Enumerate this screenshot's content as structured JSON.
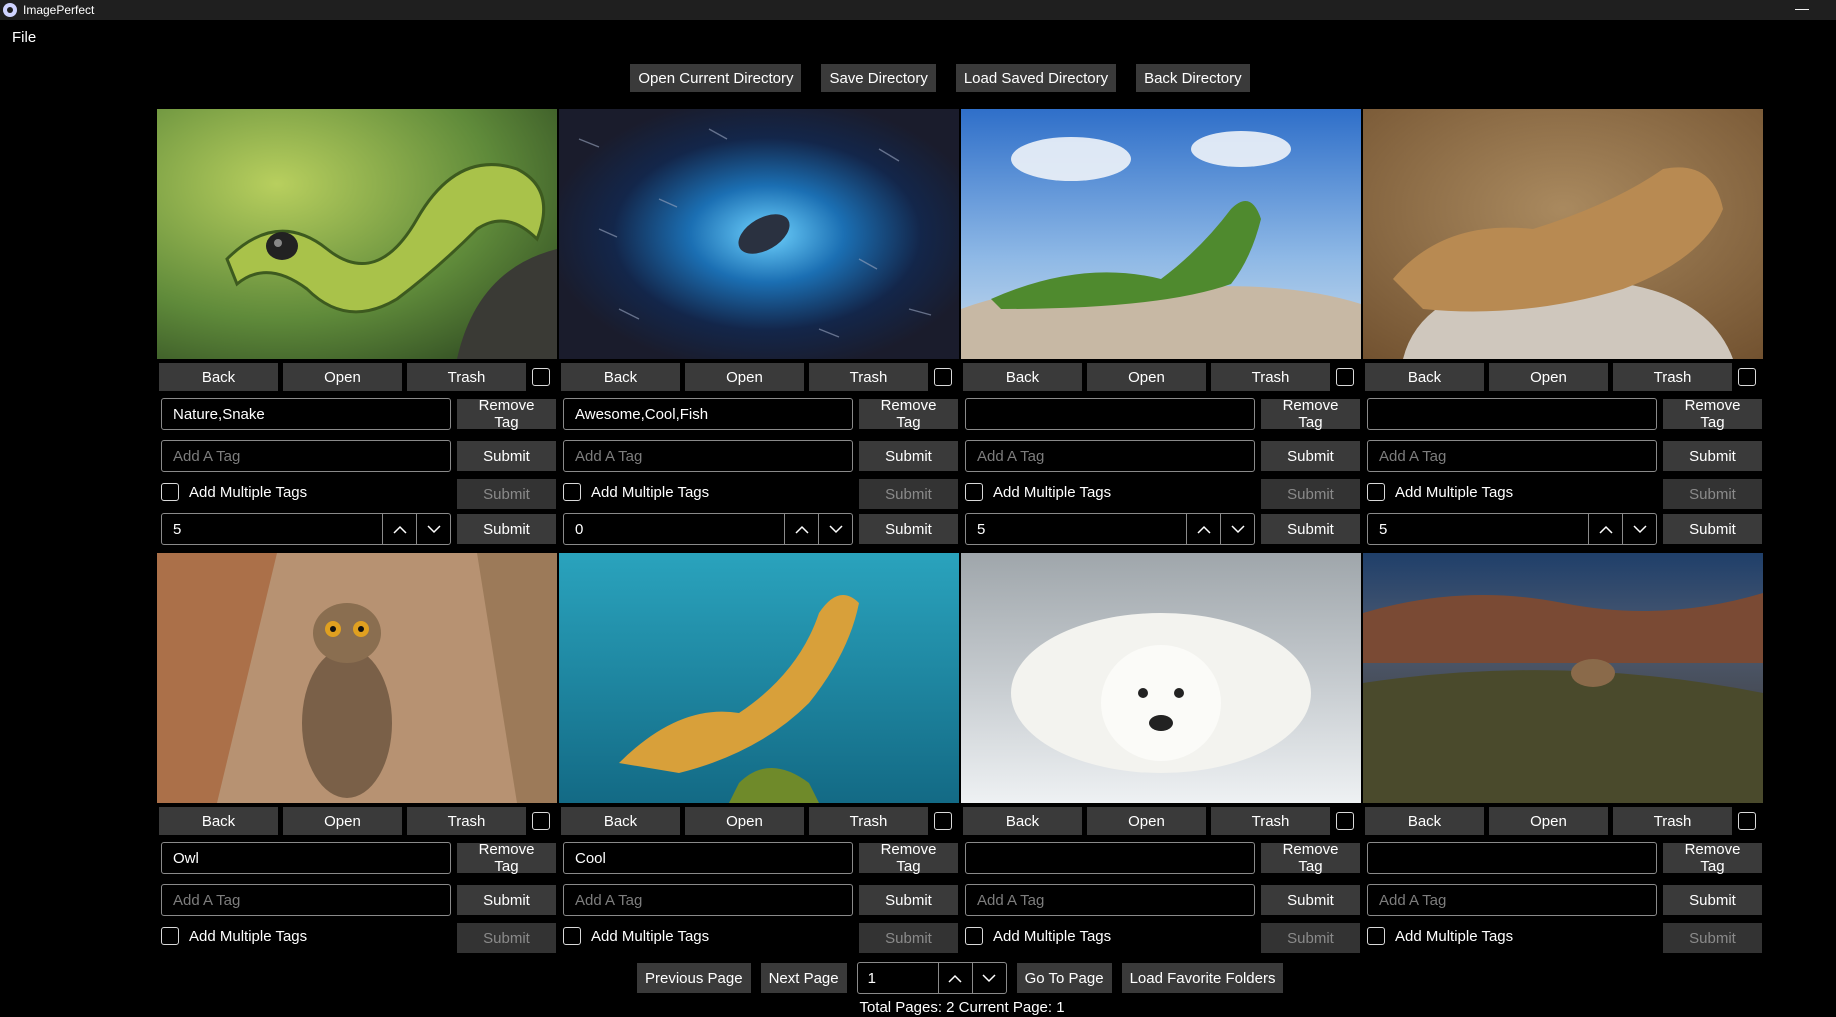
{
  "window": {
    "title": "ImagePerfect",
    "minimize_label": "—"
  },
  "menu": {
    "file": "File"
  },
  "toolbar": {
    "open_current": "Open Current Directory",
    "save_dir": "Save Directory",
    "load_saved": "Load Saved Directory",
    "back_dir": "Back Directory"
  },
  "labels": {
    "back": "Back",
    "open": "Open",
    "trash": "Trash",
    "remove_tag": "Remove Tag",
    "submit": "Submit",
    "add_tag_placeholder": "Add A Tag",
    "add_multiple": "Add Multiple Tags"
  },
  "cards": [
    {
      "subject": "bush viper snake",
      "tags": "Nature,Snake",
      "rating": "5"
    },
    {
      "subject": "sea lion in fish school",
      "tags": "Awesome,Cool,Fish",
      "rating": "0"
    },
    {
      "subject": "iguana on rock",
      "tags": "",
      "rating": "5"
    },
    {
      "subject": "sea lion resting",
      "tags": "",
      "rating": "5"
    },
    {
      "subject": "great horned owl",
      "tags": "Owl",
      "rating": ""
    },
    {
      "subject": "leafy sea dragon",
      "tags": "Cool",
      "rating": ""
    },
    {
      "subject": "polar bear",
      "tags": "",
      "rating": ""
    },
    {
      "subject": "cougar in landscape",
      "tags": "",
      "rating": ""
    }
  ],
  "pager": {
    "prev": "Previous Page",
    "next": "Next Page",
    "page_value": "1",
    "go": "Go To Page",
    "load_fav": "Load Favorite Folders",
    "status": "Total Pages: 2 Current Page: 1"
  }
}
